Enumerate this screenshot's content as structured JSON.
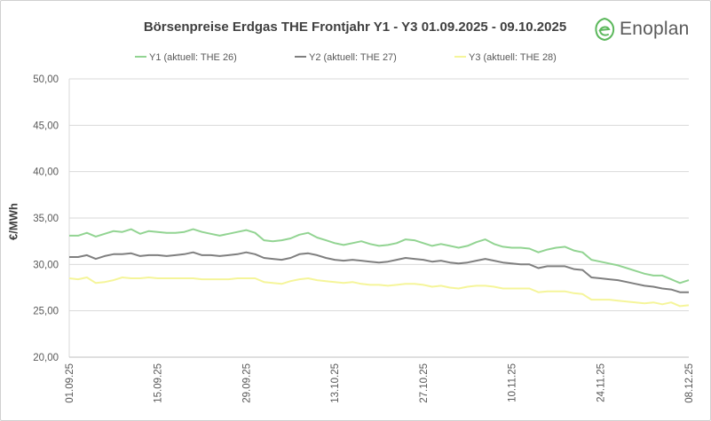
{
  "brand": {
    "name": "Enoplan",
    "logo_icon": "leaf-e-icon",
    "accent": "#5cb85c"
  },
  "chart_data": {
    "type": "line",
    "title": "Börsenpreise Erdgas THE Frontjahr Y1 - Y3 01.09.2025 - 09.10.2025",
    "xlabel": "",
    "ylabel": "€/MWh",
    "ylim": [
      20,
      50
    ],
    "yticks": [
      "20,00",
      "25,00",
      "30,00",
      "35,00",
      "40,00",
      "45,00",
      "50,00"
    ],
    "grid": true,
    "legend_position": "top",
    "x_tick_labels": [
      "01.09.25",
      "15.09.25",
      "29.09.25",
      "13.10.25",
      "27.10.25",
      "10.11.25",
      "24.11.25",
      "08.12.25"
    ],
    "x_tick_index": [
      0,
      10,
      20,
      30,
      40,
      50,
      60,
      70
    ],
    "n_points": 71,
    "series": [
      {
        "name": "Y1 (aktuell: THE 26)",
        "color": "#92d492",
        "values": [
          33.1,
          33.1,
          33.4,
          33.0,
          33.3,
          33.6,
          33.5,
          33.8,
          33.3,
          33.6,
          33.5,
          33.4,
          33.4,
          33.5,
          33.8,
          33.5,
          33.3,
          33.1,
          33.3,
          33.5,
          33.7,
          33.4,
          32.6,
          32.5,
          32.6,
          32.8,
          33.2,
          33.4,
          32.9,
          32.6,
          32.3,
          32.1,
          32.3,
          32.5,
          32.2,
          32.0,
          32.1,
          32.3,
          32.7,
          32.6,
          32.3,
          32.0,
          32.2,
          32.0,
          31.8,
          32.0,
          32.4,
          32.7,
          32.2,
          31.9,
          31.8,
          31.8,
          31.7,
          31.3,
          31.6,
          31.8,
          31.9,
          31.5,
          31.3,
          30.5,
          30.3,
          30.1,
          29.9,
          29.6,
          29.3,
          29.0,
          28.8,
          28.8,
          28.4,
          28.0,
          28.3
        ]
      },
      {
        "name": "Y2 (aktuell: THE 27)",
        "color": "#7f7f7f",
        "values": [
          30.8,
          30.8,
          31.0,
          30.6,
          30.9,
          31.1,
          31.1,
          31.2,
          30.9,
          31.0,
          31.0,
          30.9,
          31.0,
          31.1,
          31.3,
          31.0,
          31.0,
          30.9,
          31.0,
          31.1,
          31.3,
          31.1,
          30.7,
          30.6,
          30.5,
          30.7,
          31.1,
          31.2,
          31.0,
          30.7,
          30.5,
          30.4,
          30.5,
          30.4,
          30.3,
          30.2,
          30.3,
          30.5,
          30.7,
          30.6,
          30.5,
          30.3,
          30.4,
          30.2,
          30.1,
          30.2,
          30.4,
          30.6,
          30.4,
          30.2,
          30.1,
          30.0,
          30.0,
          29.6,
          29.8,
          29.8,
          29.8,
          29.5,
          29.4,
          28.6,
          28.5,
          28.4,
          28.3,
          28.1,
          27.9,
          27.7,
          27.6,
          27.4,
          27.3,
          27.0,
          27.0
        ]
      },
      {
        "name": "Y3 (aktuell: THE 28)",
        "color": "#f5f59a",
        "values": [
          28.5,
          28.4,
          28.6,
          28.0,
          28.1,
          28.3,
          28.6,
          28.5,
          28.5,
          28.6,
          28.5,
          28.5,
          28.5,
          28.5,
          28.5,
          28.4,
          28.4,
          28.4,
          28.4,
          28.5,
          28.5,
          28.5,
          28.1,
          28.0,
          27.9,
          28.2,
          28.4,
          28.5,
          28.3,
          28.2,
          28.1,
          28.0,
          28.1,
          27.9,
          27.8,
          27.8,
          27.7,
          27.8,
          27.9,
          27.9,
          27.8,
          27.6,
          27.7,
          27.5,
          27.4,
          27.6,
          27.7,
          27.7,
          27.6,
          27.4,
          27.4,
          27.4,
          27.4,
          27.0,
          27.1,
          27.1,
          27.1,
          26.9,
          26.8,
          26.2,
          26.2,
          26.2,
          26.1,
          26.0,
          25.9,
          25.8,
          25.9,
          25.7,
          25.9,
          25.5,
          25.6
        ]
      }
    ]
  }
}
